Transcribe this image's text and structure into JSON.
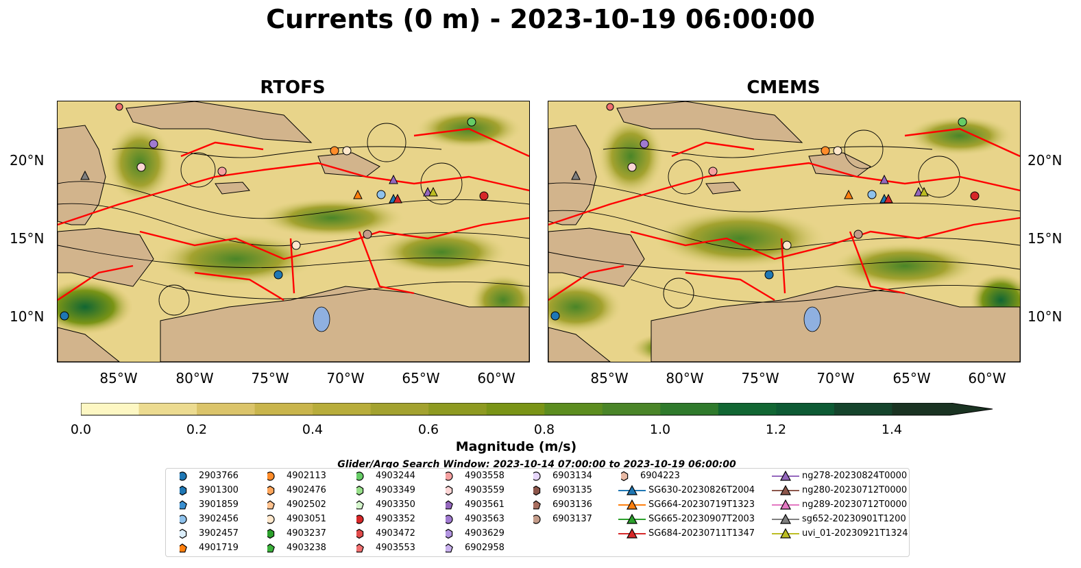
{
  "title": "Currents (0 m) - 2023-10-19 06:00:00",
  "panels": [
    {
      "title": "RTOFS"
    },
    {
      "title": "CMEMS"
    }
  ],
  "lat_labels": [
    "20°N",
    "15°N",
    "10°N"
  ],
  "lon_labels": [
    "85°W",
    "80°W",
    "75°W",
    "70°W",
    "65°W",
    "60°W"
  ],
  "colorbar": {
    "label": "Magnitude (m/s)",
    "ticks": [
      "0.0",
      "0.2",
      "0.4",
      "0.6",
      "0.8",
      "1.0",
      "1.2",
      "1.4"
    ],
    "range": [
      0,
      1.5
    ],
    "colors": [
      "#fdf7c3",
      "#ecdb90",
      "#dbc46a",
      "#c9b54c",
      "#b8ad3b",
      "#a3a22f",
      "#8e9a21",
      "#7a9416",
      "#5c8d1f",
      "#4a8528",
      "#2f7a2c",
      "#116633",
      "#0d5a34",
      "#15442c",
      "#1a3322"
    ],
    "extend": "max"
  },
  "window_note": "Glider/Argo Search Window: 2023-10-14 07:00:00 to 2023-10-19 06:00:00",
  "colors": {
    "land": "#d2b48c",
    "eez_lines": "#ff0000",
    "streamlines": "#000000"
  },
  "legend": [
    {
      "label": "2903766",
      "marker": "circle",
      "color": "#1f77b4"
    },
    {
      "label": "3901300",
      "marker": "hexagon",
      "color": "#1f77b4"
    },
    {
      "label": "3901859",
      "marker": "pentagon",
      "color": "#3a8fd0"
    },
    {
      "label": "3902456",
      "marker": "circle",
      "color": "#8fc2ec"
    },
    {
      "label": "3902457",
      "marker": "hexagon",
      "color": "#dbeefb"
    },
    {
      "label": "4901719",
      "marker": "pentagon",
      "color": "#ff7f0e"
    },
    {
      "label": "4902113",
      "marker": "circle",
      "color": "#ff8c2a"
    },
    {
      "label": "4902476",
      "marker": "hexagon",
      "color": "#ffa65c"
    },
    {
      "label": "4902502",
      "marker": "pentagon",
      "color": "#ffc28f"
    },
    {
      "label": "4903051",
      "marker": "circle",
      "color": "#ffe8cc"
    },
    {
      "label": "4903237",
      "marker": "hexagon",
      "color": "#2ca02c"
    },
    {
      "label": "4903238",
      "marker": "pentagon",
      "color": "#3cb13c"
    },
    {
      "label": "4903244",
      "marker": "circle",
      "color": "#66cc66"
    },
    {
      "label": "4903349",
      "marker": "hexagon",
      "color": "#98df8a"
    },
    {
      "label": "4903350",
      "marker": "pentagon",
      "color": "#d4f5cc"
    },
    {
      "label": "4903352",
      "marker": "circle",
      "color": "#d62728"
    },
    {
      "label": "4903472",
      "marker": "hexagon",
      "color": "#e04a4a"
    },
    {
      "label": "4903553",
      "marker": "pentagon",
      "color": "#f07070"
    },
    {
      "label": "4903558",
      "marker": "circle",
      "color": "#f4a0a0"
    },
    {
      "label": "4903559",
      "marker": "hexagon",
      "color": "#fcd6d6"
    },
    {
      "label": "4903561",
      "marker": "pentagon",
      "color": "#9467bd"
    },
    {
      "label": "4903563",
      "marker": "circle",
      "color": "#a07ad0"
    },
    {
      "label": "4903629",
      "marker": "hexagon",
      "color": "#b294e0"
    },
    {
      "label": "6902958",
      "marker": "pentagon",
      "color": "#c9b1ee"
    },
    {
      "label": "6903134",
      "marker": "circle",
      "color": "#e6d6fa"
    },
    {
      "label": "6903135",
      "marker": "hexagon",
      "color": "#8c564b"
    },
    {
      "label": "6903136",
      "marker": "pentagon",
      "color": "#a86e5f"
    },
    {
      "label": "6903137",
      "marker": "circle",
      "color": "#c49c8a"
    },
    {
      "label": "6904223",
      "marker": "hexagon",
      "color": "#e8b9a4"
    },
    {
      "label": "SG630-20230826T2004",
      "marker": "triangle",
      "color": "#1f77b4"
    },
    {
      "label": "SG664-20230719T1323",
      "marker": "triangle",
      "color": "#ff7f0e"
    },
    {
      "label": "SG665-20230907T2003",
      "marker": "triangle",
      "color": "#2ca02c"
    },
    {
      "label": "SG684-20230711T1347",
      "marker": "triangle",
      "color": "#d62728"
    },
    {
      "label": "ng278-20230824T0000",
      "marker": "triangle",
      "color": "#9467bd"
    },
    {
      "label": "ng280-20230712T0000",
      "marker": "triangle",
      "color": "#8c564b"
    },
    {
      "label": "ng289-20230712T0000",
      "marker": "triangle",
      "color": "#e377c2"
    },
    {
      "label": "sg652-20230901T1200",
      "marker": "triangle",
      "color": "#7f7f7f"
    },
    {
      "label": "uvi_01-20230921T1324",
      "marker": "triangle",
      "color": "#bcbd22"
    }
  ]
}
